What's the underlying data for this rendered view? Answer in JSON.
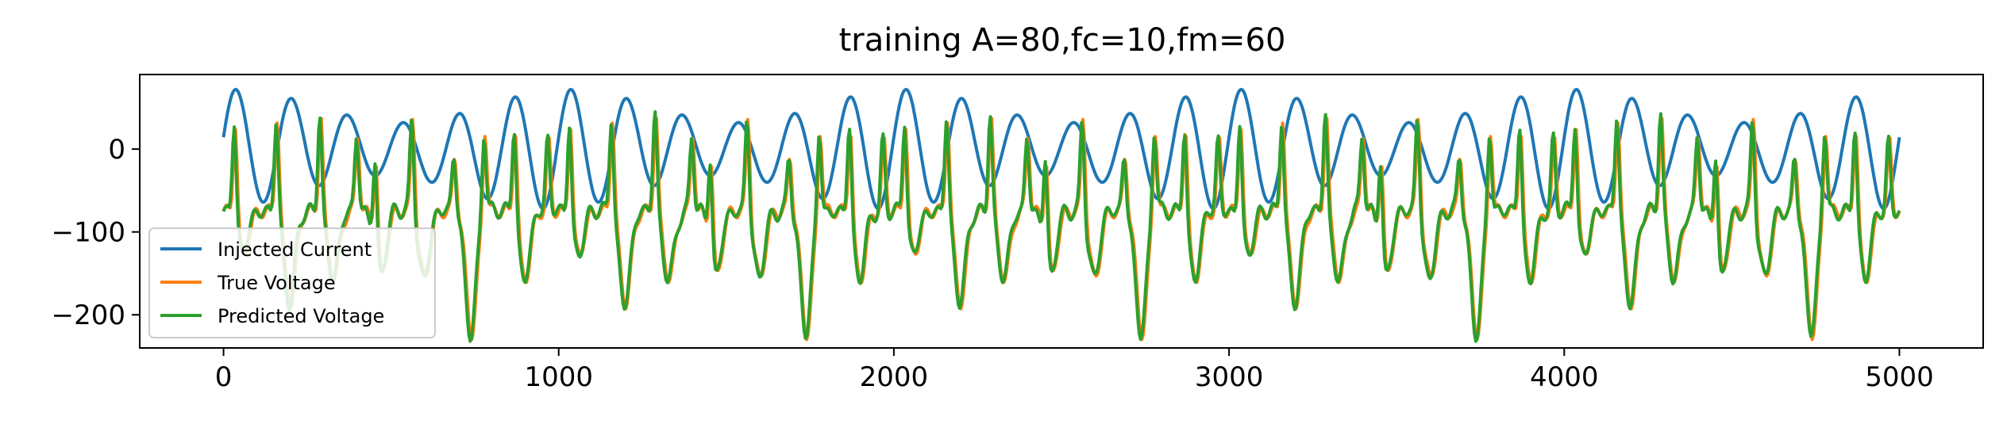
{
  "chart_data": {
    "type": "line",
    "title": "training A=80,fc=10,fm=60",
    "xlabel": "",
    "ylabel": "",
    "xlim": [
      -250,
      5250
    ],
    "ylim": [
      -240,
      90
    ],
    "xticks": [
      0,
      1000,
      2000,
      3000,
      4000,
      5000
    ],
    "xtick_labels": [
      "0",
      "1000",
      "2000",
      "3000",
      "4000",
      "5000"
    ],
    "yticks": [
      0,
      -100,
      -200
    ],
    "ytick_labels": [
      "0",
      "−100",
      "−200"
    ],
    "grid": false,
    "legend_position": "lower-left",
    "series": [
      {
        "name": "Injected Current",
        "color": "#1f77b4",
        "generator": "current",
        "x_range": [
          0,
          5000
        ],
        "period": 1000,
        "peak_max": 78,
        "peak_min": -78
      },
      {
        "name": "True Voltage",
        "color": "#ff7f0e",
        "generator": "voltage",
        "x_range": [
          0,
          5000
        ],
        "period": 1000,
        "spike_max": 48,
        "trough_min": -222,
        "baseline": -75
      },
      {
        "name": "Predicted Voltage",
        "color": "#2ca02c",
        "generator": "voltage_pred",
        "x_range": [
          0,
          5000
        ],
        "period": 1000,
        "spike_max": 48,
        "trough_min": -222,
        "baseline": -75
      }
    ]
  }
}
